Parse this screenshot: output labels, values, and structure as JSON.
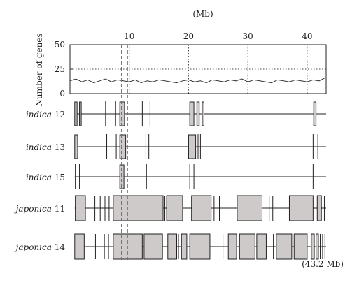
{
  "chart_data": [
    {
      "type": "line",
      "top_axis_label": "(Mb)",
      "ylabel": "Number of genes",
      "xlim": [
        0,
        43.2
      ],
      "ylim": [
        0,
        50
      ],
      "x_ticks": [
        10,
        20,
        30,
        40
      ],
      "y_ticks": [
        0,
        25,
        50
      ],
      "reference_line_y": 25,
      "highlight_x_range": [
        8.7,
        9.7
      ],
      "series": [
        {
          "x": [
            0,
            1,
            2,
            3,
            4,
            5,
            6,
            7,
            8,
            9,
            10,
            11,
            12,
            13,
            14,
            15,
            16,
            17,
            18,
            19,
            20,
            21,
            22,
            23,
            24,
            25,
            26,
            27,
            28,
            29,
            30,
            31,
            32,
            33,
            34,
            35,
            36,
            37,
            38,
            39,
            40,
            41,
            42,
            43
          ],
          "values": [
            13,
            15,
            12,
            14,
            11,
            13,
            15,
            12,
            14,
            13,
            12,
            14,
            11,
            13,
            12,
            14,
            13,
            12,
            11,
            13,
            14,
            12,
            13,
            11,
            14,
            13,
            12,
            14,
            13,
            15,
            12,
            14,
            13,
            12,
            11,
            14,
            13,
            12,
            14,
            13,
            12,
            14,
            13,
            16
          ]
        }
      ]
    },
    {
      "type": "other",
      "right_label": "(43.2 Mb)",
      "tracks": [
        {
          "species": "indica",
          "number": "12",
          "blocks": [
            [
              0.8,
              1.2
            ],
            [
              1.6,
              1.9
            ],
            [
              8.4,
              9.2
            ],
            [
              20.2,
              20.9
            ],
            [
              21.4,
              21.8
            ],
            [
              22.3,
              22.6
            ],
            [
              41.1,
              41.5
            ]
          ],
          "lines": [
            6.0,
            7.7,
            12.2,
            13.5,
            38.3
          ]
        },
        {
          "species": "indica",
          "number": "13",
          "blocks": [
            [
              0.8,
              1.3
            ],
            [
              8.4,
              9.4
            ],
            [
              20.0,
              21.2
            ]
          ],
          "lines": [
            6.2,
            7.8,
            12.8,
            13.3,
            21.6,
            22.0,
            41.0,
            41.8
          ]
        },
        {
          "species": "indica",
          "number": "15",
          "blocks": [
            [
              8.4,
              9.1
            ]
          ],
          "lines": [
            0.9,
            1.6,
            12.9,
            20.2,
            20.9,
            41.0
          ]
        },
        {
          "species": "japonica",
          "number": "11",
          "blocks": [
            [
              0.9,
              2.6
            ],
            [
              7.3,
              15.7
            ],
            [
              16.3,
              19.0
            ],
            [
              20.5,
              23.8
            ],
            [
              28.2,
              32.4
            ],
            [
              37.0,
              41.0
            ],
            [
              41.7,
              42.4
            ]
          ],
          "lines": [
            4.2,
            5.1,
            5.9,
            6.6,
            16.0,
            24.3,
            25.2,
            33.6,
            34.2,
            42.9
          ]
        },
        {
          "species": "japonica",
          "number": "14",
          "blocks": [
            [
              0.8,
              2.4
            ],
            [
              7.3,
              12.2
            ],
            [
              12.5,
              15.6
            ],
            [
              16.5,
              18.0
            ],
            [
              18.8,
              19.7
            ],
            [
              20.2,
              23.6
            ],
            [
              26.7,
              28.1
            ],
            [
              28.6,
              31.2
            ],
            [
              31.5,
              33.1
            ],
            [
              34.8,
              37.4
            ],
            [
              37.8,
              40.0
            ],
            [
              40.7,
              41.2
            ],
            [
              41.5,
              41.9
            ]
          ],
          "lines": [
            4.3,
            5.8,
            6.5,
            18.3,
            25.8,
            34.3,
            42.2,
            42.6,
            43.0
          ]
        }
      ]
    }
  ]
}
